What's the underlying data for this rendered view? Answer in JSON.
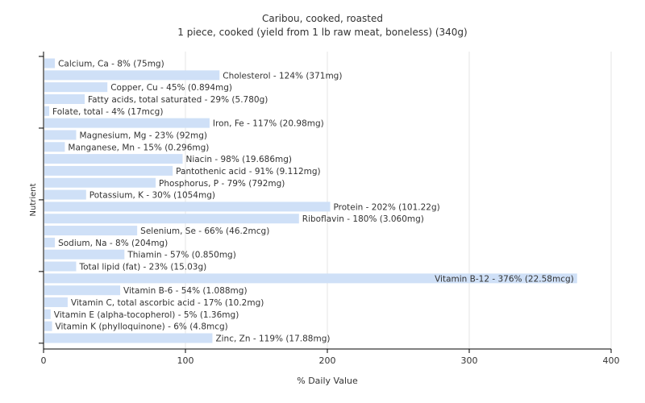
{
  "chart_data": {
    "type": "bar",
    "orientation": "horizontal",
    "title": "Caribou, cooked, roasted",
    "subtitle": "1 piece, cooked (yield from 1 lb raw meat, boneless) (340g)",
    "xlabel": "% Daily Value",
    "ylabel": "Nutrient",
    "xlim": [
      0,
      400
    ],
    "xticks": [
      0,
      100,
      200,
      300,
      400
    ],
    "grid": true,
    "legend": "none",
    "bar_color": "#cfe0f7",
    "categories": [
      "Calcium, Ca",
      "Cholesterol",
      "Copper, Cu",
      "Fatty acids, total saturated",
      "Folate, total",
      "Iron, Fe",
      "Magnesium, Mg",
      "Manganese, Mn",
      "Niacin",
      "Pantothenic acid",
      "Phosphorus, P",
      "Potassium, K",
      "Protein",
      "Riboflavin",
      "Selenium, Se",
      "Sodium, Na",
      "Thiamin",
      "Total lipid (fat)",
      "Vitamin B-12",
      "Vitamin B-6",
      "Vitamin C, total ascorbic acid",
      "Vitamin E (alpha-tocopherol)",
      "Vitamin K (phylloquinone)",
      "Zinc, Zn"
    ],
    "values": [
      8,
      124,
      45,
      29,
      4,
      117,
      23,
      15,
      98,
      91,
      79,
      30,
      202,
      180,
      66,
      8,
      57,
      23,
      376,
      54,
      17,
      5,
      6,
      119
    ],
    "labels": [
      "Calcium, Ca - 8% (75mg)",
      "Cholesterol - 124% (371mg)",
      "Copper, Cu - 45% (0.894mg)",
      "Fatty acids, total saturated - 29% (5.780g)",
      "Folate, total - 4% (17mcg)",
      "Iron, Fe - 117% (20.98mg)",
      "Magnesium, Mg - 23% (92mg)",
      "Manganese, Mn - 15% (0.296mg)",
      "Niacin - 98% (19.686mg)",
      "Pantothenic acid - 91% (9.112mg)",
      "Phosphorus, P - 79% (792mg)",
      "Potassium, K - 30% (1054mg)",
      "Protein - 202% (101.22g)",
      "Riboflavin - 180% (3.060mg)",
      "Selenium, Se - 66% (46.2mcg)",
      "Sodium, Na - 8% (204mg)",
      "Thiamin - 57% (0.850mg)",
      "Total lipid (fat) - 23% (15.03g)",
      "Vitamin B-12 - 376% (22.58mcg)",
      "Vitamin B-6 - 54% (1.088mg)",
      "Vitamin C, total ascorbic acid - 17% (10.2mg)",
      "Vitamin E (alpha-tocopherol) - 5% (1.36mg)",
      "Vitamin K (phylloquinone) - 6% (4.8mcg)",
      "Zinc, Zn - 119% (17.88mg)"
    ]
  }
}
